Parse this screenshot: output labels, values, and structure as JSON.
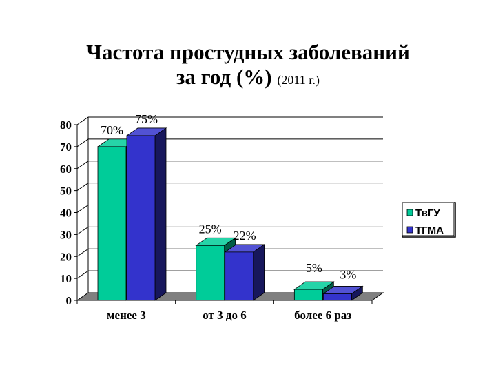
{
  "title": {
    "line1": "Частота простудных заболеваний",
    "line2_main": "за год (%)",
    "line2_small": "(2011 г.)"
  },
  "colors": {
    "tvgu": "#00CC99",
    "tgma": "#3333CC",
    "wall": "#c0c0c0",
    "floor": "#808080"
  },
  "chart_data": {
    "type": "bar",
    "categories": [
      "менее 3",
      "от 3 до 6",
      "более 6 раз"
    ],
    "series": [
      {
        "name": "ТвГУ",
        "values": [
          70,
          25,
          5
        ],
        "labels": [
          "70%",
          "25%",
          "5%"
        ]
      },
      {
        "name": "ТГМА",
        "values": [
          75,
          22,
          3
        ],
        "labels": [
          "75%",
          "22%",
          "3%"
        ]
      }
    ],
    "yticks": [
      0,
      10,
      20,
      30,
      40,
      50,
      60,
      70,
      80
    ],
    "ylim": [
      0,
      80
    ],
    "grid": true,
    "legend": "right"
  }
}
